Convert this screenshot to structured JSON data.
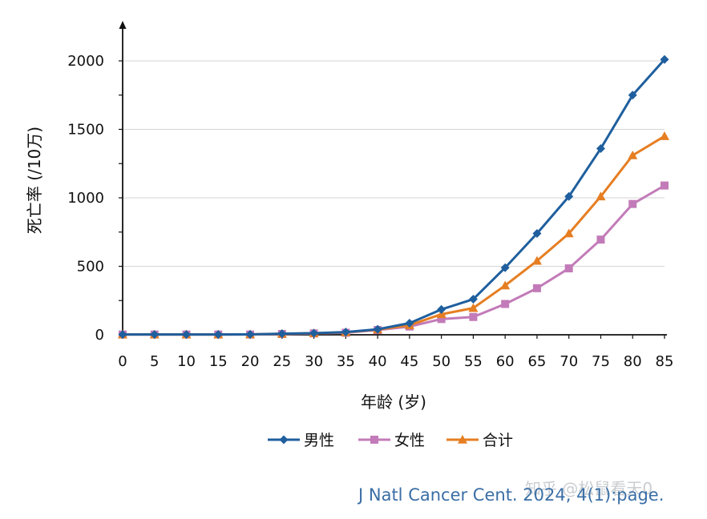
{
  "chart_data": {
    "type": "line",
    "xlabel": "年龄 (岁)",
    "ylabel": "死亡率 (/10万)",
    "x": [
      0,
      5,
      10,
      15,
      20,
      25,
      30,
      35,
      40,
      45,
      50,
      55,
      60,
      65,
      70,
      75,
      80,
      85
    ],
    "xlim": [
      0,
      85
    ],
    "ylim": [
      0,
      2000
    ],
    "yticks": [
      0,
      500,
      1000,
      1500,
      2000
    ],
    "grid": "horizontal",
    "legend_position": "bottom",
    "series": [
      {
        "name": "男性",
        "color": "#1f5f9e",
        "marker": "diamond",
        "values": [
          2,
          2,
          2,
          2,
          3,
          8,
          12,
          20,
          40,
          85,
          185,
          260,
          490,
          740,
          1010,
          1360,
          1750,
          2010
        ]
      },
      {
        "name": "女性",
        "color": "#c27bb8",
        "marker": "square",
        "values": [
          2,
          2,
          2,
          2,
          2,
          6,
          10,
          15,
          35,
          60,
          115,
          130,
          225,
          340,
          485,
          695,
          955,
          1090
        ]
      },
      {
        "name": "合计",
        "color": "#e67e22",
        "marker": "triangle",
        "values": [
          2,
          2,
          2,
          2,
          3,
          7,
          11,
          18,
          38,
          70,
          150,
          195,
          360,
          540,
          740,
          1010,
          1310,
          1450
        ]
      }
    ]
  },
  "source_note": "J Natl Cancer Cent. 2024, 4(1):page.",
  "watermark": "知乎 @松鼠看天0"
}
